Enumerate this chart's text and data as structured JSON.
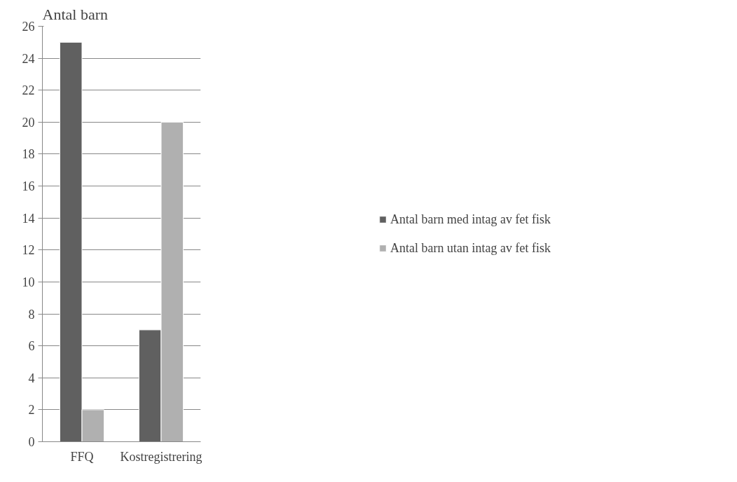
{
  "chart_data": {
    "type": "bar",
    "title": "Antal barn",
    "categories": [
      "FFQ",
      "Kostregistrering"
    ],
    "series": [
      {
        "name": "Antal barn med intag av fet fisk",
        "color": "#606060",
        "values": [
          25,
          7
        ]
      },
      {
        "name": "Antal barn utan intag av fet fisk",
        "color": "#b0b0b0",
        "values": [
          2,
          20
        ]
      }
    ],
    "ylim": [
      0,
      26
    ],
    "yticks": [
      0,
      2,
      4,
      6,
      8,
      10,
      12,
      14,
      16,
      18,
      20,
      22,
      24,
      26
    ],
    "grid": "y",
    "legend": "right"
  }
}
